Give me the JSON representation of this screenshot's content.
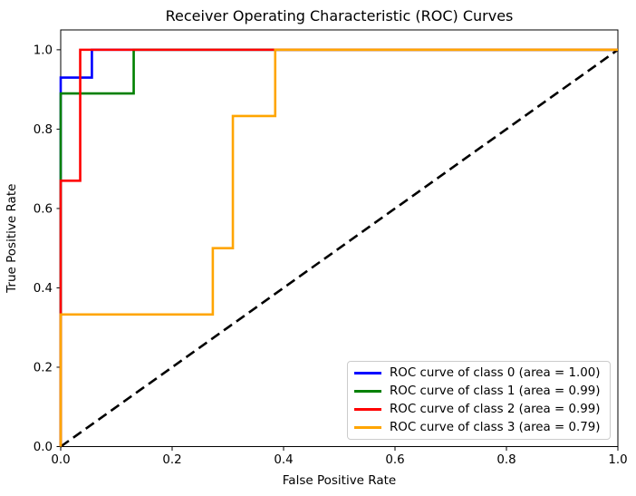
{
  "figure": {
    "background": "#ffffff",
    "axes_facecolor": "#ffffff",
    "spine_color": "#000000"
  },
  "chart_data": {
    "type": "line",
    "subtype": "roc-step-curves",
    "title": "Receiver Operating Characteristic (ROC) Curves",
    "xlabel": "False Positive Rate",
    "ylabel": "True Positive Rate",
    "xlim": [
      0.0,
      1.0
    ],
    "ylim": [
      0.0,
      1.05
    ],
    "xticks": [
      0.0,
      0.2,
      0.4,
      0.6,
      0.8,
      1.0
    ],
    "yticks": [
      0.0,
      0.2,
      0.4,
      0.6,
      0.8,
      1.0
    ],
    "xtick_labels": [
      "0.0",
      "0.2",
      "0.4",
      "0.6",
      "0.8",
      "1.0"
    ],
    "ytick_labels": [
      "0.0",
      "0.2",
      "0.4",
      "0.6",
      "0.8",
      "1.0"
    ],
    "grid": false,
    "legend_position": "lower right",
    "series": [
      {
        "name": "ROC curve of class 0 (area = 1.00)",
        "class": 0,
        "area": 1.0,
        "color": "#0000ff",
        "points": [
          [
            0.0,
            0.0
          ],
          [
            0.0,
            0.93
          ],
          [
            0.056,
            0.93
          ],
          [
            0.056,
            1.0
          ],
          [
            1.0,
            1.0
          ]
        ]
      },
      {
        "name": "ROC curve of class 1 (area = 0.99)",
        "class": 1,
        "area": 0.99,
        "color": "#008000",
        "points": [
          [
            0.0,
            0.0
          ],
          [
            0.0,
            0.89
          ],
          [
            0.131,
            0.89
          ],
          [
            0.131,
            1.0
          ],
          [
            1.0,
            1.0
          ]
        ]
      },
      {
        "name": "ROC curve of class 2 (area = 0.99)",
        "class": 2,
        "area": 0.99,
        "color": "#ff0000",
        "points": [
          [
            0.0,
            0.0
          ],
          [
            0.0,
            0.67
          ],
          [
            0.035,
            0.67
          ],
          [
            0.035,
            1.0
          ],
          [
            1.0,
            1.0
          ]
        ]
      },
      {
        "name": "ROC curve of class 3 (area = 0.79)",
        "class": 3,
        "area": 0.79,
        "color": "#ffa500",
        "points": [
          [
            0.0,
            0.0
          ],
          [
            0.0,
            0.333
          ],
          [
            0.273,
            0.333
          ],
          [
            0.273,
            0.5
          ],
          [
            0.309,
            0.5
          ],
          [
            0.309,
            0.833
          ],
          [
            0.385,
            0.833
          ],
          [
            0.385,
            1.0
          ],
          [
            1.0,
            1.0
          ]
        ]
      }
    ],
    "reference_line": {
      "name": "chance diagonal",
      "style": "dashed",
      "color": "#000000",
      "points": [
        [
          0.0,
          0.0
        ],
        [
          1.0,
          1.0
        ]
      ]
    }
  }
}
